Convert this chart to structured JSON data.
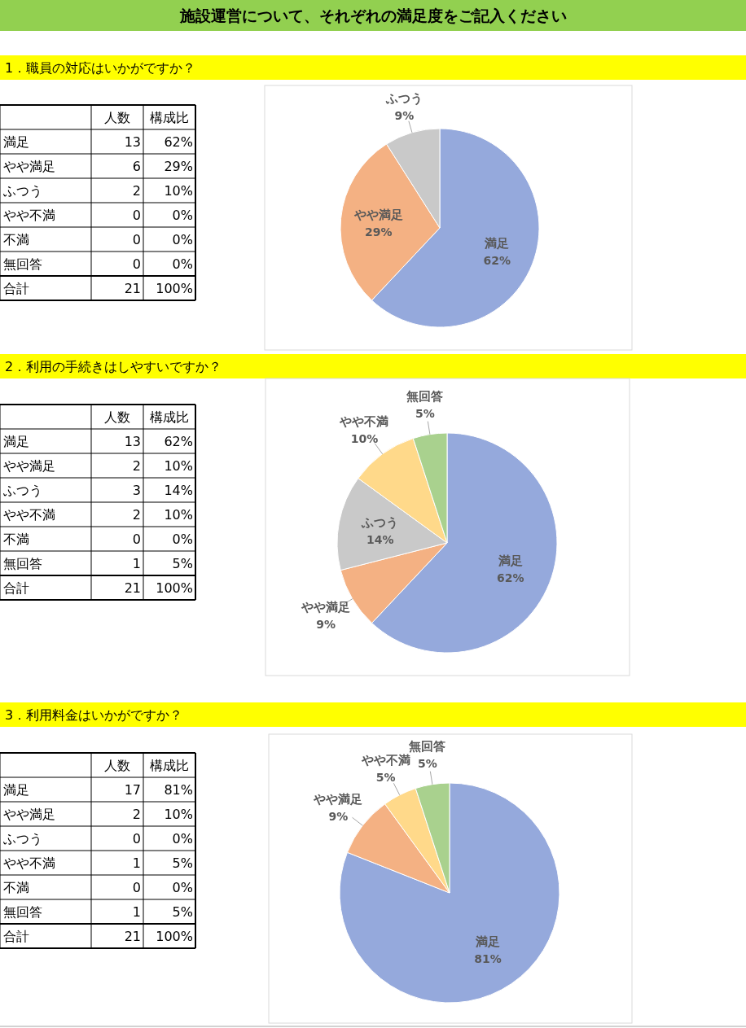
{
  "chart_data": [
    {
      "type": "other",
      "title": "施設運営について、それぞれの満足度をご記入ください"
    },
    {
      "type": "other",
      "title": "1．職員の対応はいかがですか？",
      "categories": [
        "満足",
        "やや満足",
        "ふつう",
        "やや不満",
        "不満",
        "無回答",
        "合計"
      ],
      "data_labels": true,
      "series": [
        {
          "name": "人数",
          "values": [
            13,
            6,
            2,
            0,
            0,
            0,
            21
          ]
        },
        {
          "name": "構成比",
          "values": [
            62,
            29,
            10,
            0,
            0,
            0,
            100
          ],
          "value_labels": [
            "62%",
            "29%",
            "10%",
            "0%",
            "0%",
            "0%",
            "100%"
          ]
        }
      ]
    },
    {
      "type": "pie",
      "categories": [
        "満足",
        "やや満足",
        "ふつう"
      ],
      "values": [
        62,
        29,
        9
      ],
      "colors": [
        "#95a9dc",
        "#f4b183",
        "#c9c9c9"
      ],
      "value_labels": [
        "62%",
        "29%",
        "9%"
      ]
    },
    {
      "type": "other",
      "title": "2．利用の手続きはしやすいですか？",
      "categories": [
        "満足",
        "やや満足",
        "ふつう",
        "やや不満",
        "不満",
        "無回答",
        "合計"
      ],
      "data_labels": true,
      "series": [
        {
          "name": "人数",
          "values": [
            13,
            2,
            3,
            2,
            0,
            1,
            21
          ]
        },
        {
          "name": "構成比",
          "values": [
            62,
            10,
            14,
            10,
            0,
            5,
            100
          ],
          "value_labels": [
            "62%",
            "10%",
            "14%",
            "10%",
            "0%",
            "5%",
            "100%"
          ]
        }
      ]
    },
    {
      "type": "pie",
      "categories": [
        "満足",
        "やや満足",
        "ふつう",
        "やや不満",
        "無回答"
      ],
      "values": [
        62,
        9,
        14,
        10,
        5
      ],
      "colors": [
        "#95a9dc",
        "#f4b183",
        "#c9c9c9",
        "#ffd98a",
        "#a9d18e"
      ],
      "value_labels": [
        "62%",
        "9%",
        "14%",
        "10%",
        "5%"
      ]
    },
    {
      "type": "other",
      "title": "3．利用料金はいかがですか？",
      "categories": [
        "満足",
        "やや満足",
        "ふつう",
        "やや不満",
        "不満",
        "無回答",
        "合計"
      ],
      "data_labels": true,
      "series": [
        {
          "name": "人数",
          "values": [
            17,
            2,
            0,
            1,
            0,
            1,
            21
          ]
        },
        {
          "name": "構成比",
          "values": [
            81,
            10,
            0,
            5,
            0,
            5,
            100
          ],
          "value_labels": [
            "81%",
            "10%",
            "0%",
            "5%",
            "0%",
            "5%",
            "100%"
          ]
        }
      ]
    },
    {
      "type": "pie",
      "categories": [
        "満足",
        "やや満足",
        "やや不満",
        "無回答"
      ],
      "values": [
        81,
        9,
        5,
        5
      ],
      "colors": [
        "#95a9dc",
        "#f4b183",
        "#ffd98a",
        "#a9d18e"
      ],
      "value_labels": [
        "81%",
        "9%",
        "5%",
        "5%"
      ]
    }
  ]
}
